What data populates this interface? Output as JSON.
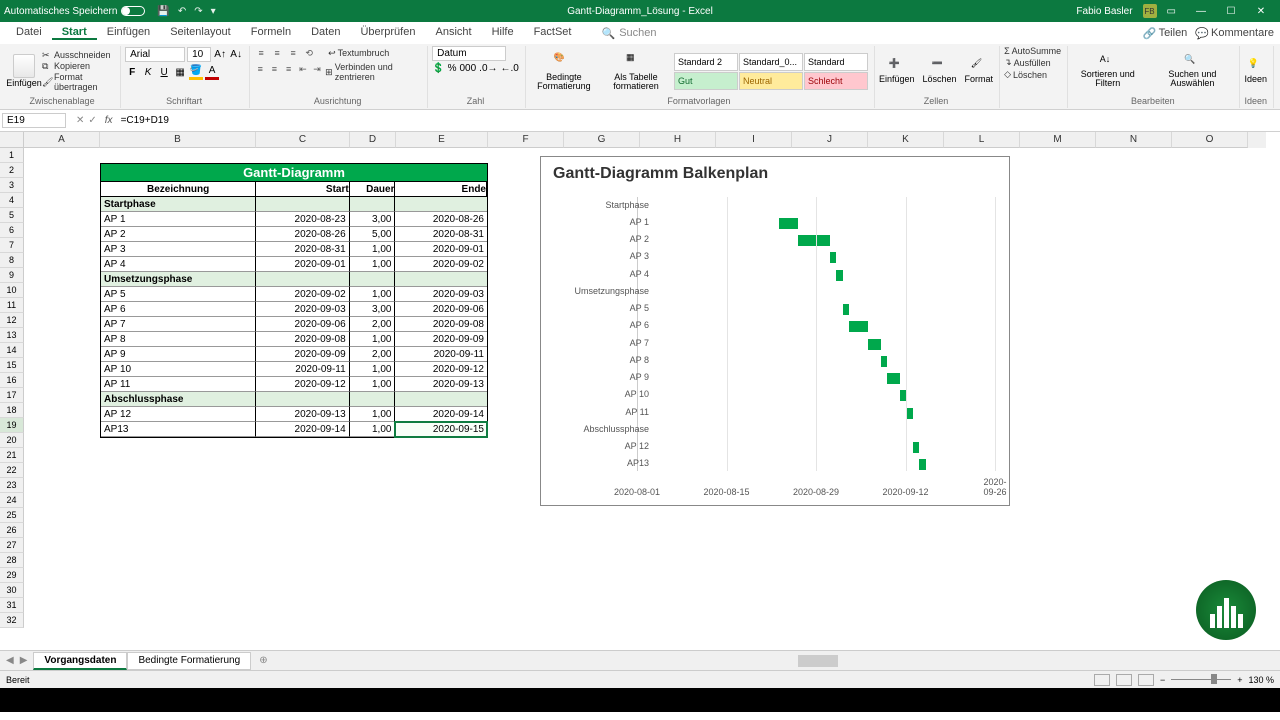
{
  "titlebar": {
    "autosave": "Automatisches Speichern",
    "doc_title": "Gantt-Diagramm_Lösung - Excel",
    "user": "Fabio Basler",
    "user_initials": "FB"
  },
  "menu": {
    "tabs": [
      "Datei",
      "Start",
      "Einfügen",
      "Seitenlayout",
      "Formeln",
      "Daten",
      "Überprüfen",
      "Ansicht",
      "Hilfe",
      "FactSet"
    ],
    "active": 1,
    "search": "Suchen",
    "teilen": "Teilen",
    "kommentare": "Kommentare"
  },
  "ribbon": {
    "clipboard": {
      "label": "Zwischenablage",
      "paste": "Einfügen",
      "cut": "Ausschneiden",
      "copy": "Kopieren",
      "format": "Format übertragen"
    },
    "font": {
      "label": "Schriftart",
      "name": "Arial",
      "size": "10"
    },
    "align": {
      "label": "Ausrichtung",
      "wrap": "Textumbruch",
      "merge": "Verbinden und zentrieren"
    },
    "number": {
      "label": "Zahl",
      "format": "Datum"
    },
    "styles": {
      "label": "Formatvorlagen",
      "cond": "Bedingte Formatierung",
      "astable": "Als Tabelle formatieren",
      "cells": [
        {
          "t": "Standard 2",
          "bg": "#ffffff"
        },
        {
          "t": "Standard_0...",
          "bg": "#ffffff"
        },
        {
          "t": "Standard",
          "bg": "#ffffff"
        },
        {
          "t": "Gut",
          "bg": "#c6efce",
          "c": "#106b2f"
        },
        {
          "t": "Neutral",
          "bg": "#ffeb9c",
          "c": "#9c6500"
        },
        {
          "t": "Schlecht",
          "bg": "#ffc7ce",
          "c": "#9c0006"
        }
      ]
    },
    "cells": {
      "label": "Zellen",
      "insert": "Einfügen",
      "delete": "Löschen",
      "format": "Format"
    },
    "edit": {
      "label": "Bearbeiten",
      "sum": "AutoSumme",
      "fill": "Ausfüllen",
      "clear": "Löschen",
      "sort": "Sortieren und Filtern",
      "find": "Suchen und Auswählen"
    },
    "ideas": {
      "label": "Ideen",
      "btn": "Ideen"
    }
  },
  "formulabar": {
    "cell": "E19",
    "formula": "=C19+D19"
  },
  "grid": {
    "columns": [
      {
        "l": "A",
        "w": 76
      },
      {
        "l": "B",
        "w": 156
      },
      {
        "l": "C",
        "w": 94
      },
      {
        "l": "D",
        "w": 46
      },
      {
        "l": "E",
        "w": 92
      },
      {
        "l": "F",
        "w": 76
      },
      {
        "l": "G",
        "w": 76
      },
      {
        "l": "H",
        "w": 76
      },
      {
        "l": "I",
        "w": 76
      },
      {
        "l": "J",
        "w": 76
      },
      {
        "l": "K",
        "w": 76
      },
      {
        "l": "L",
        "w": 76
      },
      {
        "l": "M",
        "w": 76
      },
      {
        "l": "N",
        "w": 76
      },
      {
        "l": "O",
        "w": 76
      }
    ],
    "rows": 32,
    "sel_row": 19
  },
  "datatable": {
    "title": "Gantt-Diagramm",
    "headers": [
      "Bezeichnung",
      "Start",
      "Dauer",
      "Ende"
    ],
    "rows": [
      {
        "phase": true,
        "name": "Startphase"
      },
      {
        "name": "AP 1",
        "start": "2020-08-23",
        "dur": "3,00",
        "end": "2020-08-26"
      },
      {
        "name": "AP 2",
        "start": "2020-08-26",
        "dur": "5,00",
        "end": "2020-08-31"
      },
      {
        "name": "AP 3",
        "start": "2020-08-31",
        "dur": "1,00",
        "end": "2020-09-01"
      },
      {
        "name": "AP 4",
        "start": "2020-09-01",
        "dur": "1,00",
        "end": "2020-09-02"
      },
      {
        "phase": true,
        "name": "Umsetzungsphase"
      },
      {
        "name": "AP 5",
        "start": "2020-09-02",
        "dur": "1,00",
        "end": "2020-09-03"
      },
      {
        "name": "AP 6",
        "start": "2020-09-03",
        "dur": "3,00",
        "end": "2020-09-06"
      },
      {
        "name": "AP 7",
        "start": "2020-09-06",
        "dur": "2,00",
        "end": "2020-09-08"
      },
      {
        "name": "AP 8",
        "start": "2020-09-08",
        "dur": "1,00",
        "end": "2020-09-09"
      },
      {
        "name": "AP 9",
        "start": "2020-09-09",
        "dur": "2,00",
        "end": "2020-09-11"
      },
      {
        "name": "AP 10",
        "start": "2020-09-11",
        "dur": "1,00",
        "end": "2020-09-12"
      },
      {
        "name": "AP 11",
        "start": "2020-09-12",
        "dur": "1,00",
        "end": "2020-09-13"
      },
      {
        "phase": true,
        "name": "Abschlussphase"
      },
      {
        "name": "AP 12",
        "start": "2020-09-13",
        "dur": "1,00",
        "end": "2020-09-14"
      },
      {
        "name": "AP13",
        "start": "2020-09-14",
        "dur": "1,00",
        "end": "2020-09-15",
        "sel": true
      }
    ]
  },
  "chart": {
    "title": "Gantt-Diagramm Balkenplan",
    "bar_color": "#00a84c",
    "categories": [
      "Startphase",
      "AP 1",
      "AP 2",
      "AP 3",
      "AP 4",
      "Umsetzungsphase",
      "AP 5",
      "AP 6",
      "AP 7",
      "AP 8",
      "AP 9",
      "AP 10",
      "AP 11",
      "Abschlussphase",
      "AP 12",
      "AP13"
    ],
    "x_ticks": [
      "2020-08-01",
      "2020-08-15",
      "2020-08-29",
      "2020-09-12",
      "2020-09-26"
    ],
    "x_min": 0,
    "x_max": 56,
    "bars": [
      null,
      {
        "x": 22,
        "w": 3
      },
      {
        "x": 25,
        "w": 5
      },
      {
        "x": 30,
        "w": 1
      },
      {
        "x": 31,
        "w": 1
      },
      null,
      {
        "x": 32,
        "w": 1
      },
      {
        "x": 33,
        "w": 3
      },
      {
        "x": 36,
        "w": 2
      },
      {
        "x": 38,
        "w": 1
      },
      {
        "x": 39,
        "w": 2
      },
      {
        "x": 41,
        "w": 1
      },
      {
        "x": 42,
        "w": 1
      },
      null,
      {
        "x": 43,
        "w": 1
      },
      {
        "x": 44,
        "w": 1
      }
    ]
  },
  "sheets": {
    "tabs": [
      "Vorgangsdaten",
      "Bedingte Formatierung"
    ],
    "active": 0
  },
  "status": {
    "ready": "Bereit",
    "zoom": "130 %"
  }
}
